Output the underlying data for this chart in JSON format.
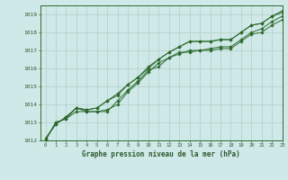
{
  "title": "Graphe pression niveau de la mer (hPa)",
  "bg_color": "#cfe8e8",
  "grid_color": "#b0d0c8",
  "line_color": "#2d6a2d",
  "text_color": "#2d5a2d",
  "xlim": [
    -0.5,
    23
  ],
  "ylim": [
    1012,
    1019.5
  ],
  "xticks": [
    0,
    1,
    2,
    3,
    4,
    5,
    6,
    7,
    8,
    9,
    10,
    11,
    12,
    13,
    14,
    15,
    16,
    17,
    18,
    19,
    20,
    21,
    22,
    23
  ],
  "yticks": [
    1012,
    1013,
    1014,
    1015,
    1016,
    1017,
    1018,
    1019
  ],
  "series": [
    [
      1012.0,
      1013.0,
      1013.2,
      1013.8,
      1013.6,
      1013.6,
      1013.6,
      1014.2,
      1014.8,
      1015.3,
      1015.9,
      1016.1,
      1016.6,
      1016.8,
      1017.0,
      1017.0,
      1017.1,
      1017.2,
      1017.2,
      1017.6,
      1018.0,
      1018.2,
      1018.6,
      1018.9
    ],
    [
      1012.0,
      1013.0,
      1013.2,
      1013.6,
      1013.6,
      1013.6,
      1013.7,
      1014.0,
      1014.7,
      1015.2,
      1015.8,
      1016.3,
      1016.6,
      1016.9,
      1016.9,
      1017.0,
      1017.0,
      1017.1,
      1017.1,
      1017.5,
      1017.9,
      1018.0,
      1018.4,
      1018.7
    ],
    [
      1012.1,
      1012.9,
      1013.3,
      1013.8,
      1013.7,
      1013.8,
      1014.2,
      1014.5,
      1015.1,
      1015.5,
      1016.0,
      1016.5,
      1016.9,
      1017.2,
      1017.5,
      1017.5,
      1017.5,
      1017.6,
      1017.6,
      1018.0,
      1018.4,
      1018.5,
      1018.9,
      1019.1
    ],
    [
      1012.1,
      1012.9,
      1013.3,
      1013.8,
      1013.7,
      1013.8,
      1014.2,
      1014.6,
      1015.1,
      1015.5,
      1016.1,
      1016.5,
      1016.9,
      1017.2,
      1017.5,
      1017.5,
      1017.5,
      1017.6,
      1017.6,
      1018.0,
      1018.4,
      1018.5,
      1018.9,
      1019.2
    ]
  ]
}
